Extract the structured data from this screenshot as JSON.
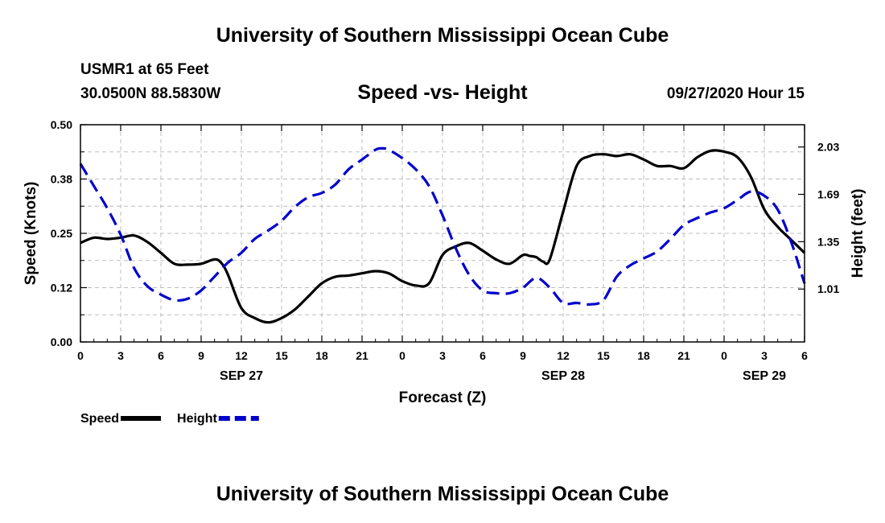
{
  "header": {
    "top_title": "University of Southern Mississippi Ocean Cube",
    "station": "USMR1 at 65 Feet",
    "coords": "30.0500N 88.5830W",
    "chart_title": "Speed -vs- Height",
    "datetime": "09/27/2020 Hour 15",
    "bottom_title": "University of Southern Mississippi Ocean Cube"
  },
  "chart_data": {
    "type": "line",
    "title": "Speed -vs- Height",
    "xlabel": "Forecast (Z)",
    "ylabel": "Speed (Knots)",
    "y2label": "Height (feet)",
    "xlim": [
      0,
      54
    ],
    "ylim": [
      0,
      0.5
    ],
    "y2lim": [
      0.63,
      2.19
    ],
    "grid": true,
    "x_ticks": [
      0,
      3,
      6,
      9,
      12,
      15,
      18,
      21,
      24,
      27,
      30,
      33,
      36,
      39,
      42,
      45,
      48,
      51,
      54
    ],
    "x_tick_labels": [
      "0",
      "3",
      "6",
      "9",
      "12",
      "15",
      "18",
      "21",
      "0",
      "3",
      "6",
      "9",
      "12",
      "15",
      "18",
      "21",
      "0",
      "3",
      "6"
    ],
    "y_ticks": [
      0,
      0.125,
      0.25,
      0.375,
      0.5
    ],
    "y_tick_labels": [
      "0.00",
      "0.12",
      "0.25",
      "0.38",
      "0.50"
    ],
    "y2_ticks": [
      1.01,
      1.35,
      1.69,
      2.03
    ],
    "y2_tick_labels": [
      "1.01",
      "1.35",
      "1.69",
      "2.03"
    ],
    "date_labels": [
      {
        "x": 12,
        "label": "SEP 27"
      },
      {
        "x": 36,
        "label": "SEP 28"
      },
      {
        "x": 51,
        "label": "SEP 29"
      }
    ],
    "legend_position": "bottom-left",
    "series": [
      {
        "name": "Speed",
        "axis": "left",
        "color": "#000000",
        "dash": "solid",
        "x": [
          0,
          1,
          2,
          3,
          4,
          5,
          6,
          7,
          8,
          9,
          10,
          10.5,
          11,
          12,
          13,
          14,
          15,
          16,
          17,
          18,
          19,
          20,
          21,
          22,
          23,
          24,
          25,
          26,
          27,
          28,
          29,
          30,
          31,
          32,
          33,
          33.5,
          34,
          34.5,
          35,
          36,
          37,
          38,
          39,
          40,
          41,
          42,
          43,
          44,
          45,
          46,
          47,
          48,
          49,
          50,
          51,
          52,
          53,
          54
        ],
        "y": [
          0.228,
          0.24,
          0.237,
          0.24,
          0.245,
          0.23,
          0.205,
          0.18,
          0.178,
          0.18,
          0.19,
          0.182,
          0.155,
          0.078,
          0.055,
          0.045,
          0.055,
          0.075,
          0.105,
          0.135,
          0.15,
          0.153,
          0.158,
          0.163,
          0.158,
          0.14,
          0.13,
          0.135,
          0.2,
          0.22,
          0.228,
          0.21,
          0.19,
          0.18,
          0.2,
          0.198,
          0.195,
          0.185,
          0.19,
          0.3,
          0.405,
          0.428,
          0.432,
          0.428,
          0.432,
          0.42,
          0.405,
          0.405,
          0.4,
          0.425,
          0.44,
          0.438,
          0.425,
          0.38,
          0.305,
          0.265,
          0.235,
          0.205
        ]
      },
      {
        "name": "Height",
        "axis": "right",
        "color": "#0000cc",
        "dash": "dashed",
        "x": [
          0,
          1,
          2,
          3,
          4,
          5,
          6,
          7,
          8,
          9,
          10,
          11,
          12,
          13,
          14,
          15,
          16,
          17,
          18,
          19,
          20,
          21,
          22,
          22.5,
          23,
          24,
          25,
          26,
          27,
          28,
          29,
          30,
          31,
          32,
          33,
          34,
          35,
          36,
          37,
          38,
          39,
          40,
          41,
          42,
          43,
          44,
          45,
          46,
          47,
          48,
          49,
          50,
          51,
          52,
          53,
          54
        ],
        "y": [
          1.91,
          1.75,
          1.59,
          1.4,
          1.16,
          1.03,
          0.97,
          0.93,
          0.94,
          1,
          1.1,
          1.2,
          1.27,
          1.37,
          1.43,
          1.5,
          1.6,
          1.67,
          1.7,
          1.76,
          1.87,
          1.94,
          2.01,
          2.02,
          2.01,
          1.95,
          1.87,
          1.75,
          1.54,
          1.3,
          1.11,
          1.0,
          0.98,
          0.98,
          1.02,
          1.09,
          1.02,
          0.91,
          0.91,
          0.9,
          0.93,
          1.1,
          1.18,
          1.23,
          1.28,
          1.37,
          1.47,
          1.52,
          1.56,
          1.59,
          1.65,
          1.71,
          1.68,
          1.58,
          1.35,
          1.05
        ]
      }
    ]
  }
}
